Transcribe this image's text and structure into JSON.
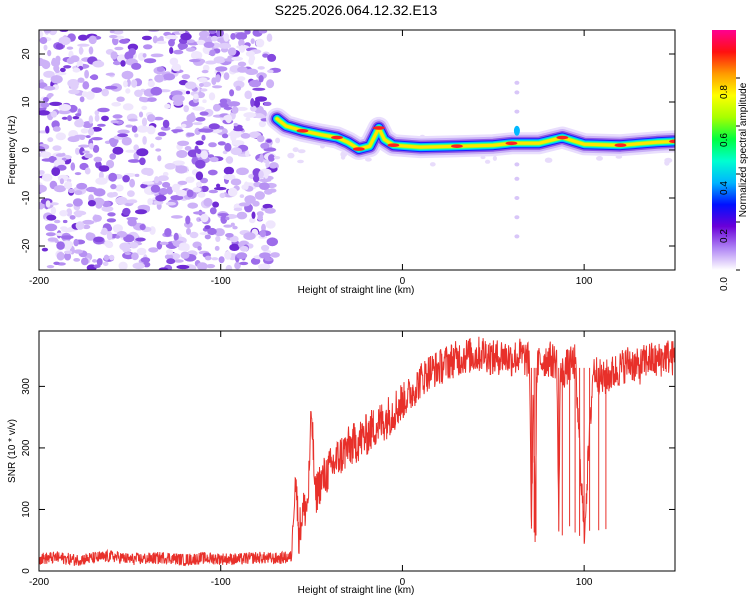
{
  "title": "S225.2026.064.12.32.E13",
  "chart_data": [
    {
      "type": "heatmap",
      "name": "spectrogram",
      "xlabel": "Height of straight line (km)",
      "ylabel": "Frequency (Hz)",
      "xlim": [
        -200,
        150
      ],
      "ylim": [
        -25,
        25
      ],
      "xticks": [
        -200,
        -100,
        0,
        100
      ],
      "yticks": [
        -20,
        -10,
        0,
        10,
        20
      ],
      "noise_region_x": [
        -200,
        -70
      ],
      "ridge": [
        {
          "x": -69,
          "y": 6.5
        },
        {
          "x": -64,
          "y": 5.0
        },
        {
          "x": -55,
          "y": 4.0
        },
        {
          "x": -45,
          "y": 3.2
        },
        {
          "x": -36,
          "y": 2.6
        },
        {
          "x": -30,
          "y": 1.6
        },
        {
          "x": -24,
          "y": 0.2
        },
        {
          "x": -18,
          "y": 0.8
        },
        {
          "x": -13,
          "y": 4.6
        },
        {
          "x": -10,
          "y": 2.2
        },
        {
          "x": -5,
          "y": 1.0
        },
        {
          "x": 10,
          "y": 0.6
        },
        {
          "x": 30,
          "y": 0.8
        },
        {
          "x": 50,
          "y": 1.0
        },
        {
          "x": 60,
          "y": 1.4
        },
        {
          "x": 75,
          "y": 1.4
        },
        {
          "x": 88,
          "y": 2.6
        },
        {
          "x": 100,
          "y": 1.2
        },
        {
          "x": 120,
          "y": 1.0
        },
        {
          "x": 140,
          "y": 1.6
        },
        {
          "x": 150,
          "y": 1.8
        }
      ],
      "colorbar": {
        "label": "Normalized spectral amplitude",
        "range": [
          0,
          1
        ],
        "ticks": [
          "0.0",
          "0.2",
          "0.4",
          "0.6",
          "0.8"
        ],
        "colors": [
          "#ffffff",
          "#b085f5",
          "#6a00d8",
          "#0010ff",
          "#00b4ff",
          "#00ffd0",
          "#00ff40",
          "#a8ff00",
          "#ffff00",
          "#ff9a00",
          "#ff1010",
          "#ff0090"
        ]
      }
    },
    {
      "type": "line",
      "name": "snr",
      "xlabel": "Height of straight line (km)",
      "ylabel": "SNR (10 * v/v)",
      "xlim": [
        -200,
        150
      ],
      "ylim": [
        0,
        390
      ],
      "xticks": [
        -200,
        -100,
        0,
        100
      ],
      "yticks": [
        0,
        100,
        200,
        300
      ],
      "series": [
        {
          "name": "SNR",
          "color": "#e8302a",
          "x": [
            -200,
            -190,
            -180,
            -170,
            -160,
            -150,
            -140,
            -130,
            -120,
            -110,
            -100,
            -90,
            -80,
            -70,
            -61,
            -59,
            -57,
            -55,
            -52,
            -50,
            -48,
            -46,
            -40,
            -35,
            -30,
            -25,
            -20,
            -15,
            -10,
            -5,
            0,
            5,
            10,
            15,
            20,
            25,
            30,
            35,
            40,
            45,
            50,
            55,
            60,
            65,
            70,
            71,
            72,
            73,
            74,
            75,
            80,
            85,
            86,
            87,
            88,
            90,
            95,
            100,
            105,
            110,
            115,
            120,
            125,
            130,
            135,
            140,
            145,
            150
          ],
          "y": [
            20,
            22,
            18,
            21,
            24,
            19,
            20,
            22,
            18,
            21,
            20,
            19,
            22,
            20,
            23,
            165,
            60,
            95,
            110,
            260,
            120,
            140,
            165,
            185,
            200,
            210,
            220,
            235,
            245,
            260,
            275,
            290,
            310,
            325,
            330,
            340,
            345,
            350,
            350,
            355,
            345,
            350,
            345,
            350,
            340,
            60,
            300,
            70,
            320,
            340,
            345,
            340,
            70,
            340,
            320,
            330,
            340,
            60,
            330,
            310,
            320,
            330,
            340,
            330,
            345,
            340,
            350,
            345
          ]
        }
      ]
    }
  ]
}
